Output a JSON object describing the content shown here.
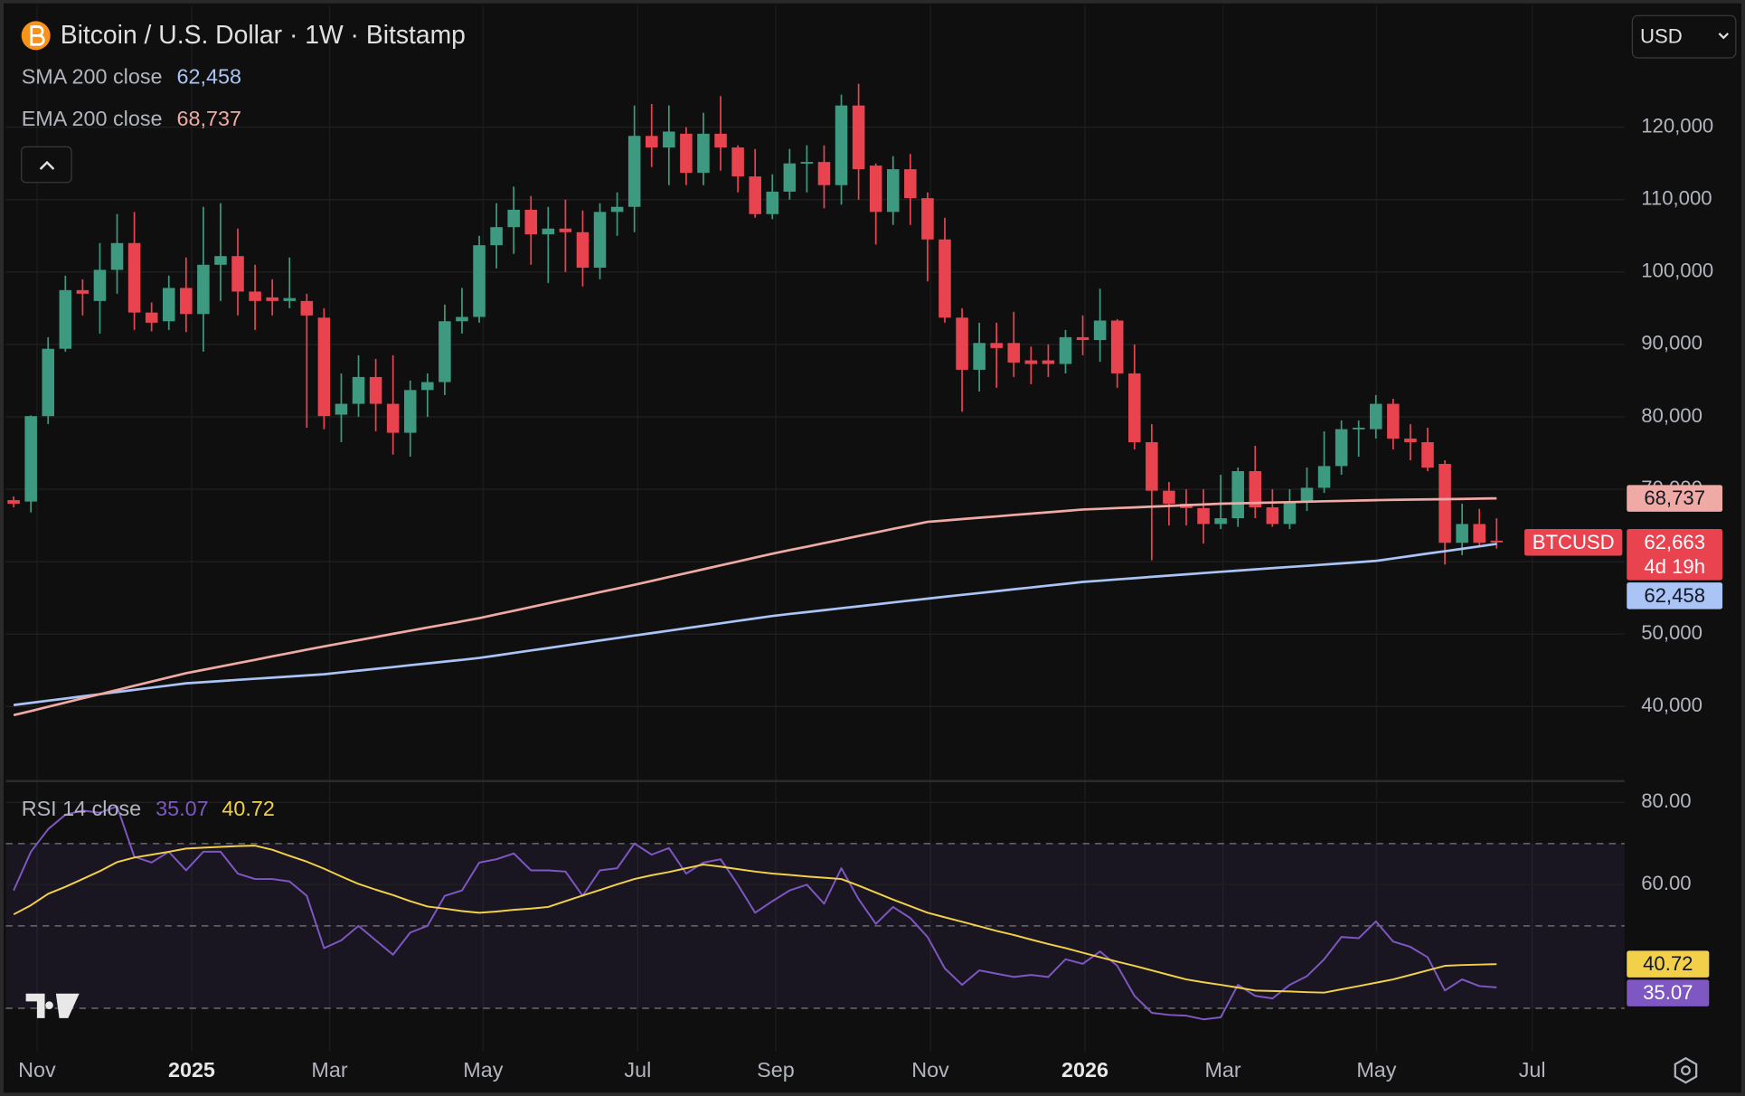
{
  "chart_data": {
    "type": "candlestick",
    "title": "Bitcoin / U.S. Dollar · 1W · Bitstamp",
    "currency": "USD",
    "x_labels": [
      "Nov",
      "2025",
      "Mar",
      "May",
      "Jul",
      "Sep",
      "Nov",
      "2026",
      "Mar",
      "May",
      "Jul"
    ],
    "ylim": [
      30000,
      136800
    ],
    "yticks": [
      {
        "value": 40000,
        "label": "40,000"
      },
      {
        "value": 50000,
        "label": "50,000"
      },
      {
        "value": 60000,
        "label": "60,000"
      },
      {
        "value": 70000,
        "label": "70,000"
      },
      {
        "value": 80000,
        "label": "80,000"
      },
      {
        "value": 90000,
        "label": "90,000"
      },
      {
        "value": 100000,
        "label": "100,000"
      },
      {
        "value": 110000,
        "label": "110,000"
      },
      {
        "value": 120000,
        "label": "120,000"
      }
    ],
    "grid": true,
    "up_color": "#3d9a80",
    "down_color": "#e8434f",
    "series": [
      {
        "name": "BTCUSD",
        "open": [
          68500,
          68300,
          80100,
          89400,
          97500,
          96000,
          100300,
          104000,
          94400,
          93200,
          97800,
          94200,
          101000,
          102200,
          97300,
          96500,
          96000,
          96000,
          93700,
          80300,
          81800,
          85500,
          81800,
          77800,
          83700,
          84800,
          93200,
          93800,
          103700,
          106200,
          108600,
          105200,
          106000,
          105500,
          100600,
          108300,
          109000,
          118800,
          117200,
          119100,
          113700,
          119100,
          117200,
          113200,
          108000,
          111100,
          115000,
          115200,
          112000,
          123000,
          114700,
          108300,
          114200,
          110200,
          104500,
          93700,
          86500,
          90200,
          90200,
          87800,
          87800,
          87300,
          91000,
          90600,
          93300,
          86000,
          76500,
          69800,
          68000,
          67400,
          65200,
          66000,
          72500,
          67500,
          65200,
          68300,
          70200,
          73200,
          78300,
          78300,
          81800,
          77000,
          76500,
          73500,
          62600,
          65200,
          62900
        ],
        "high": [
          69000,
          80200,
          91000,
          99500,
          99000,
          104000,
          108000,
          108300,
          95800,
          99500,
          102000,
          109000,
          109500,
          106000,
          101000,
          99000,
          102000,
          97000,
          95000,
          86000,
          88500,
          88000,
          88500,
          85000,
          86000,
          95500,
          97800,
          105000,
          109500,
          111800,
          110500,
          109000,
          110000,
          108500,
          109500,
          111000,
          123000,
          123200,
          123000,
          120000,
          122000,
          124300,
          117500,
          117000,
          113500,
          117000,
          117500,
          117500,
          124500,
          126000,
          115000,
          116000,
          116300,
          111000,
          107500,
          95000,
          93000,
          93000,
          94500,
          89700,
          90000,
          92000,
          94000,
          97700,
          93500,
          90000,
          79000,
          71000,
          70000,
          70000,
          72000,
          73000,
          76000,
          70000,
          70000,
          73000,
          78000,
          79500,
          79500,
          83000,
          82500,
          79000,
          78500,
          74000,
          68000,
          67300,
          66000
        ],
        "low": [
          67500,
          66800,
          79000,
          89000,
          94000,
          91500,
          97000,
          92000,
          91800,
          92000,
          91700,
          89000,
          96000,
          94000,
          92000,
          94000,
          95000,
          78500,
          78300,
          76500,
          80000,
          78000,
          74800,
          74500,
          80000,
          83000,
          91500,
          93000,
          100500,
          102500,
          101000,
          98500,
          100000,
          98000,
          99000,
          105000,
          105500,
          114500,
          112000,
          112000,
          112000,
          114000,
          111000,
          107500,
          107300,
          110000,
          111000,
          108800,
          109300,
          110000,
          103800,
          106500,
          106500,
          98700,
          93000,
          80700,
          83500,
          84000,
          85500,
          84500,
          85500,
          86000,
          88500,
          87600,
          84000,
          75500,
          60200,
          65000,
          65000,
          62500,
          64500,
          64800,
          66000,
          64800,
          64500,
          67000,
          69500,
          72000,
          74500,
          77000,
          75500,
          74000,
          72500,
          59600,
          60900,
          62000,
          61800
        ],
        "close": [
          68000,
          80100,
          89400,
          97500,
          97000,
          100300,
          104000,
          94400,
          93000,
          97800,
          94200,
          101000,
          102200,
          97300,
          96000,
          96000,
          96400,
          94000,
          80100,
          81800,
          85500,
          81800,
          77800,
          83700,
          84800,
          93200,
          93800,
          103700,
          106200,
          108600,
          105200,
          106000,
          105500,
          100600,
          108300,
          109000,
          118800,
          117200,
          119400,
          113700,
          119100,
          117200,
          113200,
          108000,
          111100,
          115000,
          115200,
          112000,
          123000,
          114200,
          108300,
          114200,
          110200,
          104500,
          93700,
          86500,
          90200,
          89500,
          87500,
          87300,
          87300,
          91000,
          90600,
          93300,
          86000,
          76500,
          69800,
          68000,
          67400,
          65200,
          66000,
          72500,
          67500,
          65200,
          68300,
          70200,
          73200,
          78300,
          78500,
          81800,
          77000,
          76500,
          73000,
          62600,
          65200,
          62600,
          62663
        ],
        "last_label": "62,663",
        "countdown": "4d 19h"
      }
    ],
    "overlays": [
      {
        "name": "SMA 200 close",
        "color": "#a9c4f5",
        "last_label": "62,458",
        "values": [
          40200,
          40500,
          40800,
          41100,
          41400,
          41700,
          42000,
          42300,
          42600,
          42900,
          43200,
          43356,
          43513,
          43669,
          43825,
          43981,
          44138,
          44294,
          44450,
          44700,
          44950,
          45200,
          45450,
          45700,
          45950,
          46200,
          46450,
          46700,
          47044,
          47389,
          47733,
          48078,
          48422,
          48767,
          49111,
          49456,
          49800,
          50138,
          50475,
          50813,
          51150,
          51488,
          51825,
          52163,
          52500,
          52767,
          53033,
          53300,
          53567,
          53833,
          54100,
          54367,
          54633,
          54900,
          55156,
          55411,
          55667,
          55922,
          56178,
          56433,
          56689,
          56944,
          57200,
          57375,
          57550,
          57725,
          57900,
          58075,
          58250,
          58425,
          58600,
          58767,
          58933,
          59100,
          59267,
          59433,
          59600,
          59767,
          59933,
          60100,
          60437,
          60774,
          61111,
          61448,
          61785,
          62122,
          62458
        ]
      },
      {
        "name": "EMA 200 close",
        "color": "#f0aaa6",
        "last_label": "68,737",
        "values": [
          38800,
          39380,
          39960,
          40540,
          41120,
          41700,
          42280,
          42860,
          43440,
          44020,
          44600,
          45063,
          45525,
          45988,
          46450,
          46913,
          47375,
          47838,
          48300,
          48733,
          49167,
          49600,
          50033,
          50467,
          50900,
          51333,
          51767,
          52200,
          52711,
          53222,
          53733,
          54244,
          54756,
          55267,
          55778,
          56289,
          56800,
          57338,
          57875,
          58413,
          58950,
          59488,
          60025,
          60563,
          61100,
          61589,
          62078,
          62567,
          63056,
          63544,
          64033,
          64522,
          65011,
          65500,
          65689,
          65878,
          66067,
          66256,
          66444,
          66633,
          66822,
          67011,
          67200,
          67300,
          67400,
          67500,
          67600,
          67700,
          67800,
          67900,
          68000,
          68056,
          68111,
          68167,
          68222,
          68278,
          68333,
          68389,
          68444,
          68500,
          68534,
          68568,
          68602,
          68635,
          68669,
          68703,
          68737
        ]
      }
    ],
    "rsi": {
      "name": "RSI 14 close",
      "ylim": [
        19.5,
        84.9
      ],
      "yticks": [
        {
          "value": 80,
          "label": "80.00"
        },
        {
          "value": 60,
          "label": "60.00"
        }
      ],
      "levels": [
        70,
        50,
        30
      ],
      "series": [
        {
          "color": "#7e57c2",
          "values": [
            58.6,
            68,
            73.5,
            77,
            78,
            77.5,
            79,
            66.8,
            65.4,
            68,
            63.5,
            68,
            68,
            62.7,
            61.4,
            61.4,
            60.8,
            57.3,
            44.6,
            46.5,
            50,
            46.5,
            43,
            48.4,
            50,
            57.3,
            58.6,
            65.4,
            66.2,
            67.6,
            63.5,
            63.5,
            63.2,
            57.3,
            63.5,
            64,
            70,
            67.3,
            68.9,
            62.7,
            65.4,
            66.2,
            60,
            53.2,
            56,
            58.6,
            60,
            55.4,
            64,
            56.5,
            50.5,
            54.6,
            51.9,
            47.3,
            39.7,
            35.7,
            39.2,
            38.4,
            37.6,
            38.1,
            37.6,
            41.9,
            40.8,
            43.8,
            40.3,
            33,
            28.9,
            28.4,
            28.2,
            27.3,
            27.8,
            35.7,
            33,
            32.4,
            35.7,
            37.8,
            41.9,
            47.3,
            47,
            51.1,
            46.2,
            44.9,
            42.4,
            34.3,
            37,
            35.4,
            35.07
          ]
        },
        {
          "color": "#f2d04a",
          "values": [
            52.8,
            55,
            57.8,
            59.5,
            61.4,
            63.3,
            65.5,
            66.6,
            67.3,
            68,
            68.8,
            69,
            69.2,
            69.4,
            69.5,
            68.5,
            67,
            65.6,
            63.9,
            62,
            60.2,
            58.8,
            57.5,
            56,
            54.7,
            54.2,
            53.6,
            53.2,
            53.5,
            53.9,
            54.2,
            54.6,
            56,
            57.4,
            58.7,
            60.1,
            61.4,
            62.3,
            63.1,
            64,
            64.9,
            64.4,
            63.8,
            63.2,
            62.7,
            62.4,
            62,
            61.7,
            61.4,
            59.8,
            58.1,
            56.4,
            54.8,
            53.2,
            52.1,
            51,
            49.9,
            48.8,
            47.8,
            46.7,
            45.6,
            44.6,
            43.5,
            42.4,
            41.3,
            40.3,
            39.2,
            38.1,
            37,
            36.3,
            35.7,
            35,
            34.3,
            34.2,
            34.1,
            33.9,
            33.8,
            34.6,
            35.4,
            36.2,
            37,
            38.1,
            39.2,
            40.3,
            40.5,
            40.6,
            40.72
          ]
        }
      ]
    }
  }
}
